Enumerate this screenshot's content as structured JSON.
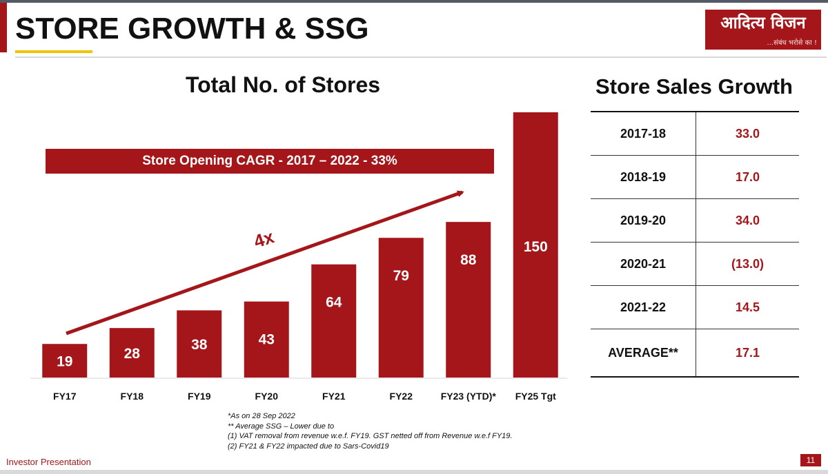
{
  "header": {
    "title": "STORE GROWTH & SSG",
    "logo_text": "आदित्य विजन",
    "logo_tagline": "...संबंध भरोसे का !"
  },
  "banner": "Store Opening CAGR - 2017 – 2022 - 33%",
  "growth_label": "4x",
  "chart_data": {
    "type": "bar",
    "title": "Total No. of Stores",
    "categories": [
      "FY17",
      "FY18",
      "FY19",
      "FY20",
      "FY21",
      "FY22",
      "FY23 (YTD)*",
      "FY25 Tgt"
    ],
    "values": [
      19,
      28,
      38,
      43,
      64,
      79,
      88,
      150
    ],
    "xlabel": "",
    "ylabel": "",
    "ylim": [
      0,
      150
    ],
    "grid": false,
    "data_labels": true,
    "annotations": [
      "Store Opening CAGR - 2017 – 2022 - 33%",
      "4x"
    ]
  },
  "ssg": {
    "title": "Store Sales Growth",
    "rows": [
      {
        "year": "2017-18",
        "value": "33.0"
      },
      {
        "year": "2018-19",
        "value": "17.0"
      },
      {
        "year": "2019-20",
        "value": "34.0"
      },
      {
        "year": "2020-21",
        "value": "(13.0)"
      },
      {
        "year": "2021-22",
        "value": "14.5"
      },
      {
        "year": "AVERAGE**",
        "value": "17.1"
      }
    ]
  },
  "notes": [
    "*As on 28 Sep 2022",
    "** Average SSG – Lower due to",
    "(1)  VAT removal from revenue w.e.f. FY19. GST netted off from Revenue w.e.f  FY19.",
    "(2)  FY21 & FY22 impacted due to Sars-Covid19"
  ],
  "footer": {
    "label": "Investor Presentation",
    "page": "11"
  },
  "colors": {
    "accent": "#a4161a",
    "underline": "#f2c300"
  }
}
